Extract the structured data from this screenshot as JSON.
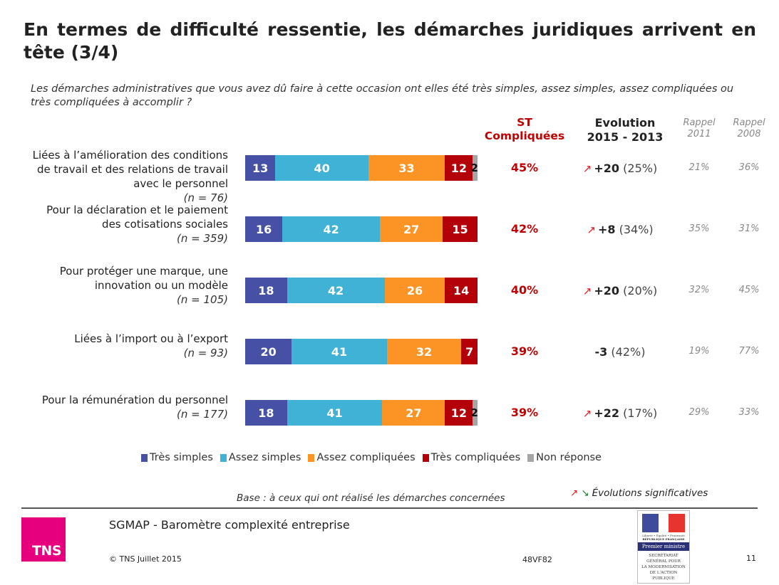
{
  "title": "En termes de difficulté ressentie, les démarches juridiques arrivent en tête (3/4)",
  "question": "Les démarches administratives que vous avez dû faire à cette occasion ont elles été très simples, assez simples, assez compliquées ou très compliquées à accomplir ?",
  "columns": {
    "st_compliquees": "ST\nCompliquées",
    "evolution": "Evolution\n2015 - 2013",
    "rappel_2011": "Rappel\n2011",
    "rappel_2008": "Rappel\n2008"
  },
  "colors": {
    "tres_simples": "#4651a6",
    "assez_simples": "#40b2d5",
    "assez_compliquees": "#fb9424",
    "tres_compliquees": "#b30009",
    "non_reponse": "#a6a6a6",
    "accent_red": "#c00000",
    "arrow_up": "#e8141a",
    "arrow_down": "#1a7a2a",
    "tns_pink": "#e6007e"
  },
  "chart_data": {
    "type": "bar",
    "orientation": "horizontal-stacked-100",
    "title": "En termes de difficulté ressentie, les démarches juridiques arrivent en tête (3/4)",
    "xlabel": "",
    "ylabel": "",
    "xlim": [
      0,
      100
    ],
    "legend_position": "bottom",
    "categories": [
      "Liées à l’amélioration des conditions de travail et des relations de travail avec le personnel",
      "Pour la déclaration et le paiement des cotisations sociales",
      "Pour protéger une marque, une innovation ou un modèle",
      "Liées à l’import ou à l’export",
      "Pour la rémunération du personnel"
    ],
    "series": [
      {
        "name": "Très simples",
        "values": [
          13,
          16,
          18,
          20,
          18
        ]
      },
      {
        "name": "Assez simples",
        "values": [
          40,
          42,
          42,
          41,
          41
        ]
      },
      {
        "name": "Assez compliquées",
        "values": [
          33,
          27,
          26,
          32,
          27
        ]
      },
      {
        "name": "Très compliquées",
        "values": [
          12,
          15,
          14,
          7,
          12
        ]
      },
      {
        "name": "Non réponse",
        "values": [
          2,
          0,
          0,
          0,
          2
        ]
      }
    ]
  },
  "rows": [
    {
      "label_lines": [
        "Liées à l’amélioration des conditions",
        "de travail et des relations de travail",
        "avec le personnel"
      ],
      "n": "(n = 76)",
      "st": "45%",
      "evo_arrow": "up",
      "evo_num": "+20",
      "evo_pct": "(25%)",
      "rappel_2011": "21%",
      "rappel_2008": "36%"
    },
    {
      "label_lines": [
        "Pour la déclaration et le paiement",
        "des cotisations sociales"
      ],
      "n": "(n = 359)",
      "st": "42%",
      "evo_arrow": "up",
      "evo_num": "+8",
      "evo_pct": "(34%)",
      "rappel_2011": "35%",
      "rappel_2008": "31%"
    },
    {
      "label_lines": [
        "Pour protéger une marque, une",
        "innovation ou un modèle"
      ],
      "n": "(n = 105)",
      "st": "40%",
      "evo_arrow": "up",
      "evo_num": "+20",
      "evo_pct": "(20%)",
      "rappel_2011": "32%",
      "rappel_2008": "45%"
    },
    {
      "label_lines": [
        "Liées à l’import ou à l’export"
      ],
      "n": "(n = 93)",
      "st": "39%",
      "evo_arrow": "",
      "evo_num": "-3",
      "evo_pct": "(42%)",
      "rappel_2011": "19%",
      "rappel_2008": "77%"
    },
    {
      "label_lines": [
        "Pour la rémunération du personnel"
      ],
      "n": "(n = 177)",
      "st": "39%",
      "evo_arrow": "up",
      "evo_num": "+22",
      "evo_pct": "(17%)",
      "rappel_2011": "29%",
      "rappel_2008": "33%"
    }
  ],
  "legend": [
    {
      "label": "Très simples",
      "color_key": "tres_simples"
    },
    {
      "label": "Assez simples",
      "color_key": "assez_simples"
    },
    {
      "label": "Assez compliquées",
      "color_key": "assez_compliquees"
    },
    {
      "label": "Très compliquées",
      "color_key": "tres_compliquees"
    },
    {
      "label": "Non réponse",
      "color_key": "non_reponse"
    }
  ],
  "icons": {
    "arrow_up": "↗",
    "arrow_down": "↘"
  },
  "base_note": "Base : à ceux qui ont réalisé les démarches concernées",
  "significant_note": "Évolutions significatives",
  "footer": {
    "logo_text": "TNS",
    "title": "SGMAP - Baromètre complexité entreprise",
    "copyright": "© TNS Juillet 2015",
    "reference": "48VF82",
    "page_number": "11",
    "gov_logo": {
      "motto": "Liberté • Égalité • Fraternité",
      "republic": "RÉPUBLIQUE FRANÇAISE",
      "ministry": "Premier ministre",
      "agency": "SECRÉTARIAT\nGÉNÉRAL POUR\nLA MODERNISATION\nDE L'ACTION\nPUBLIQUE"
    }
  }
}
